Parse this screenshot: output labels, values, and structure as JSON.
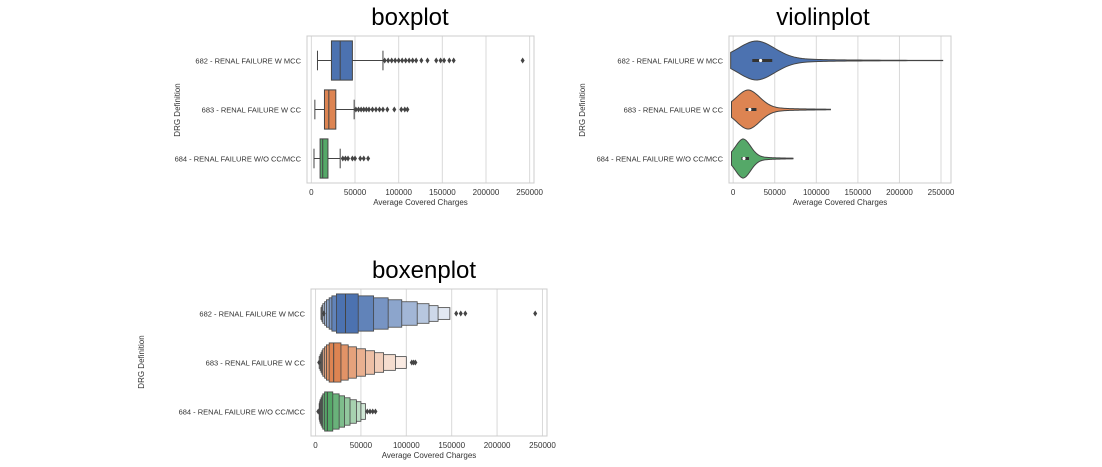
{
  "chart_data": [
    {
      "type": "boxplot",
      "title": "boxplot",
      "xlabel": "Average Covered Charges",
      "ylabel": "DRG Definition",
      "xlim": [
        -5000,
        255000
      ],
      "xticks": [
        0,
        50000,
        100000,
        150000,
        200000,
        250000
      ],
      "xtick_labels": [
        "0",
        "50000",
        "100000",
        "150000",
        "200000",
        "250000"
      ],
      "grid": true,
      "categories": [
        "682 - RENAL FAILURE W MCC",
        "683 - RENAL FAILURE W CC",
        "684 - RENAL FAILURE W/O CC/MCC"
      ],
      "colors": [
        "#4c72b0",
        "#dd8452",
        "#55a868"
      ],
      "boxes": [
        {
          "whisker_low": 7000,
          "q1": 23000,
          "median": 33000,
          "q3": 47000,
          "whisker_high": 82000,
          "outliers": [
            84000,
            88000,
            92000,
            96000,
            100000,
            104000,
            108000,
            112000,
            116000,
            120000,
            126000,
            133000,
            143000,
            148000,
            152000,
            158000,
            163000,
            242000
          ]
        },
        {
          "whisker_low": 4000,
          "q1": 15000,
          "median": 20000,
          "q3": 28000,
          "whisker_high": 49000,
          "outliers": [
            51000,
            54000,
            57000,
            60000,
            63000,
            66000,
            70000,
            74000,
            78000,
            82000,
            87000,
            95000,
            103000,
            107000,
            110000
          ]
        },
        {
          "whisker_low": 3000,
          "q1": 10000,
          "median": 13000,
          "q3": 19000,
          "whisker_high": 33000,
          "outliers": [
            36000,
            39000,
            42000,
            47000,
            50000,
            56000,
            60000,
            65000
          ]
        }
      ]
    },
    {
      "type": "violinplot",
      "title": "violinplot",
      "xlabel": "Average Covered Charges",
      "ylabel": "DRG Definition",
      "xlim": [
        -5000,
        262000
      ],
      "xticks": [
        0,
        50000,
        100000,
        150000,
        200000,
        250000
      ],
      "xtick_labels": [
        "0",
        "50000",
        "100000",
        "150000",
        "200000",
        "250000"
      ],
      "grid": true,
      "categories": [
        "682 - RENAL FAILURE W MCC",
        "683 - RENAL FAILURE W CC",
        "684 - RENAL FAILURE W/O CC/MCC"
      ],
      "colors": [
        "#4c72b0",
        "#dd8452",
        "#55a868"
      ],
      "violins": [
        {
          "min": -3000,
          "max": 252000,
          "q1": 23000,
          "median": 33000,
          "q3": 47000,
          "mode": 28000,
          "spread": 22000
        },
        {
          "min": -2000,
          "max": 117000,
          "q1": 15000,
          "median": 20000,
          "q3": 28000,
          "mode": 18000,
          "spread": 14000
        },
        {
          "min": -2000,
          "max": 72000,
          "q1": 10000,
          "median": 13000,
          "q3": 19000,
          "mode": 12000,
          "spread": 9000
        }
      ]
    },
    {
      "type": "boxenplot",
      "title": "boxenplot",
      "xlabel": "Average Covered Charges",
      "ylabel": "DRG Definition",
      "xlim": [
        -5000,
        255000
      ],
      "xticks": [
        0,
        50000,
        100000,
        150000,
        200000,
        250000
      ],
      "xtick_labels": [
        "0",
        "50000",
        "100000",
        "150000",
        "200000",
        "250000"
      ],
      "grid": true,
      "categories": [
        "682 - RENAL FAILURE W MCC",
        "683 - RENAL FAILURE W CC",
        "684 - RENAL FAILURE W/O CC/MCC"
      ],
      "colors": [
        "#4c72b0",
        "#dd8452",
        "#55a868"
      ],
      "boxens": [
        {
          "median": 33000,
          "levels": [
            [
              23000,
              47000
            ],
            [
              18000,
              64000
            ],
            [
              15000,
              80000
            ],
            [
              12000,
              95000
            ],
            [
              10000,
              112000
            ],
            [
              8000,
              125000
            ],
            [
              7000,
              135000
            ],
            [
              6000,
              148000
            ]
          ],
          "outliers": [
            9000,
            155000,
            160000,
            165000,
            242000
          ]
        },
        {
          "median": 20000,
          "levels": [
            [
              15000,
              28000
            ],
            [
              12000,
              36000
            ],
            [
              10000,
              45000
            ],
            [
              8000,
              55000
            ],
            [
              7000,
              65000
            ],
            [
              6000,
              75000
            ],
            [
              5000,
              88000
            ],
            [
              4000,
              100000
            ]
          ],
          "outliers": [
            4000,
            106000,
            108000,
            110000
          ]
        },
        {
          "median": 13000,
          "levels": [
            [
              10000,
              19000
            ],
            [
              8000,
              26000
            ],
            [
              7000,
              32000
            ],
            [
              6000,
              38000
            ],
            [
              5000,
              45000
            ],
            [
              4500,
              50000
            ],
            [
              4000,
              55000
            ]
          ],
          "outliers": [
            3000,
            57000,
            60000,
            63000,
            66000
          ]
        }
      ]
    }
  ]
}
